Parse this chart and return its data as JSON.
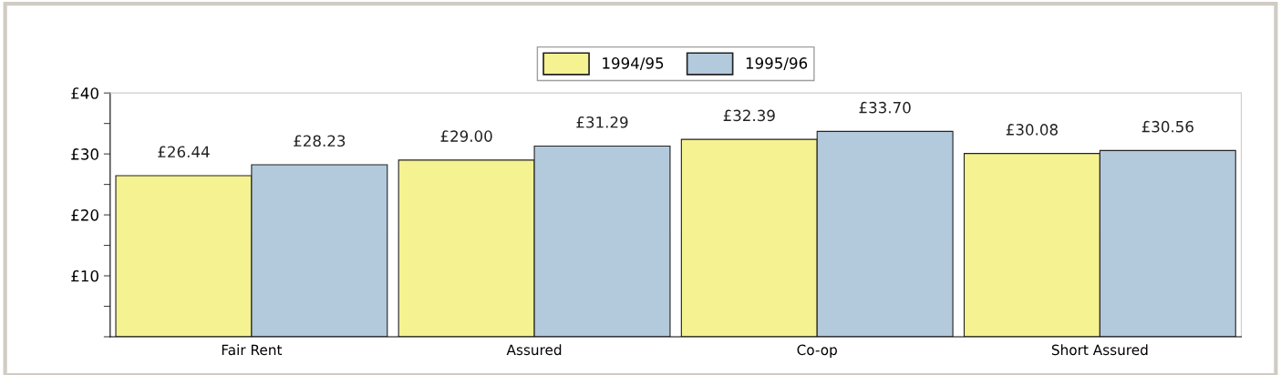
{
  "chart_data": {
    "type": "bar",
    "categories": [
      "Fair Rent",
      "Assured",
      "Co-op",
      "Short Assured"
    ],
    "series": [
      {
        "name": "1994/95",
        "color": "#f5f291",
        "values": [
          26.44,
          29.0,
          32.39,
          30.08
        ],
        "value_labels": [
          "£26.44",
          "£29.00",
          "£32.39",
          "£30.08"
        ]
      },
      {
        "name": "1995/96",
        "color": "#b3c9dc",
        "values": [
          28.23,
          31.29,
          33.7,
          30.56
        ],
        "value_labels": [
          "£28.23",
          "£31.29",
          "£33.70",
          "£30.56"
        ]
      }
    ],
    "ylim": [
      0,
      40
    ],
    "yticks": [
      {
        "value": 0,
        "label": null
      },
      {
        "value": 5,
        "label": null
      },
      {
        "value": 10,
        "label": "£10"
      },
      {
        "value": 15,
        "label": null
      },
      {
        "value": 20,
        "label": "£20"
      },
      {
        "value": 25,
        "label": null
      },
      {
        "value": 30,
        "label": "£30"
      },
      {
        "value": 35,
        "label": null
      },
      {
        "value": 40,
        "label": "£40"
      }
    ],
    "grid": false,
    "legend": "top"
  }
}
